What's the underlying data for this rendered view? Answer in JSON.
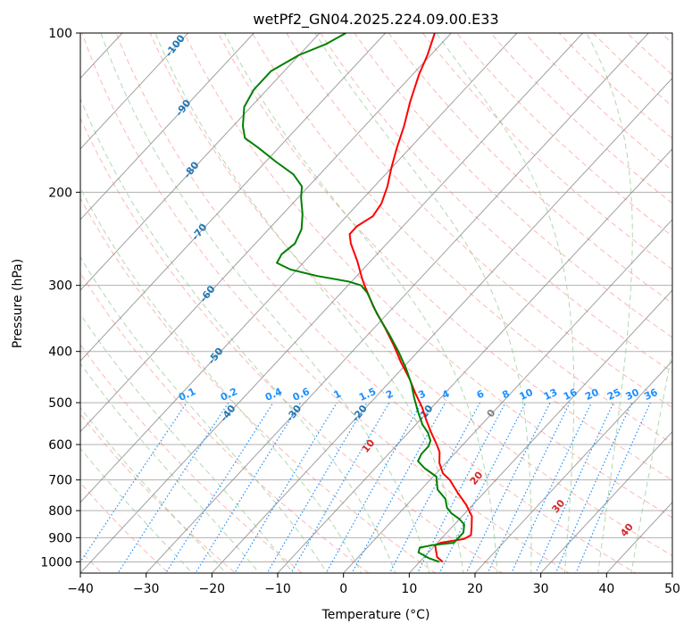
{
  "chart_data": {
    "type": "line",
    "title": "wetPf2_GN04.2025.224.09.00.E33",
    "xlabel": "Temperature (°C)",
    "ylabel": "Pressure (hPa)",
    "xlim": [
      -40,
      50
    ],
    "ylim": [
      1050,
      100
    ],
    "y_scale": "log",
    "skew": true,
    "grid": true,
    "x_ticks": [
      -40,
      -30,
      -20,
      -10,
      0,
      10,
      20,
      30,
      40,
      50
    ],
    "x_tick_labels": [
      "−40",
      "−30",
      "−20",
      "−10",
      "0",
      "10",
      "20",
      "30",
      "40",
      "50"
    ],
    "y_ticks": [
      100,
      200,
      300,
      400,
      500,
      600,
      700,
      800,
      900,
      1000
    ],
    "y_tick_labels": [
      "100",
      "200",
      "300",
      "400",
      "500",
      "600",
      "700",
      "800",
      "900",
      "1000"
    ],
    "isotherm_labels": [
      "-100",
      "-90",
      "-80",
      "-70",
      "-60",
      "-50",
      "-40",
      "-30",
      "-20",
      "-10",
      "0"
    ],
    "mixing_ratio_labels": [
      "0.1",
      "0.2",
      "0.4",
      "0.6",
      "1",
      "1.5",
      "2",
      "3",
      "4",
      "6",
      "8",
      "10",
      "13",
      "16",
      "20",
      "25",
      "30",
      "36"
    ],
    "moist_adiabat_labels": [
      "10",
      "20",
      "30",
      "40"
    ],
    "colors": {
      "temperature": "#ff0000",
      "dewpoint": "#008000",
      "isotherm": "#808080",
      "dry_adiabat": "#fa8072",
      "moist_adiabat": "#90c990",
      "mixing_ratio": "#1e90ff",
      "isotherm_label": "#1f77b4",
      "mixing_ratio_label": "#1e90ff",
      "moist_label": "#d62728",
      "isobar": "#b0b0b0",
      "lcl_curve": "#d2b48c"
    },
    "series": [
      {
        "kind": "temperature",
        "points": [
          {
            "p": 1000,
            "t": 13.5
          },
          {
            "p": 980,
            "t": 12.0
          },
          {
            "p": 955,
            "t": 11.0
          },
          {
            "p": 930,
            "t": 10.0
          },
          {
            "p": 920,
            "t": 10.5
          },
          {
            "p": 905,
            "t": 13.5
          },
          {
            "p": 890,
            "t": 14.0
          },
          {
            "p": 860,
            "t": 13.0
          },
          {
            "p": 820,
            "t": 11.5
          },
          {
            "p": 780,
            "t": 9.0
          },
          {
            "p": 740,
            "t": 6.0
          },
          {
            "p": 700,
            "t": 3.0
          },
          {
            "p": 680,
            "t": 1.0
          },
          {
            "p": 650,
            "t": -1.0
          },
          {
            "p": 620,
            "t": -2.5
          },
          {
            "p": 600,
            "t": -4.0
          },
          {
            "p": 570,
            "t": -6.5
          },
          {
            "p": 540,
            "t": -9.0
          },
          {
            "p": 510,
            "t": -11.5
          },
          {
            "p": 480,
            "t": -14.5
          },
          {
            "p": 450,
            "t": -17.5
          },
          {
            "p": 420,
            "t": -21.0
          },
          {
            "p": 390,
            "t": -24.5
          },
          {
            "p": 360,
            "t": -28.5
          },
          {
            "p": 330,
            "t": -33.0
          },
          {
            "p": 300,
            "t": -37.5
          },
          {
            "p": 290,
            "t": -39.0
          },
          {
            "p": 270,
            "t": -42.0
          },
          {
            "p": 250,
            "t": -45.5
          },
          {
            "p": 240,
            "t": -47.0
          },
          {
            "p": 232,
            "t": -47.0
          },
          {
            "p": 222,
            "t": -46.0
          },
          {
            "p": 210,
            "t": -46.5
          },
          {
            "p": 195,
            "t": -48.0
          },
          {
            "p": 180,
            "t": -50.0
          },
          {
            "p": 165,
            "t": -52.0
          },
          {
            "p": 150,
            "t": -54.0
          },
          {
            "p": 135,
            "t": -56.5
          },
          {
            "p": 120,
            "t": -59.0
          },
          {
            "p": 110,
            "t": -60.5
          },
          {
            "p": 100,
            "t": -62.5
          }
        ]
      },
      {
        "kind": "dewpoint",
        "points": [
          {
            "p": 1000,
            "t": 13.0
          },
          {
            "p": 985,
            "t": 11.0
          },
          {
            "p": 960,
            "t": 8.5
          },
          {
            "p": 940,
            "t": 8.0
          },
          {
            "p": 930,
            "t": 9.5
          },
          {
            "p": 920,
            "t": 12.5
          },
          {
            "p": 900,
            "t": 12.5
          },
          {
            "p": 880,
            "t": 12.5
          },
          {
            "p": 850,
            "t": 11.5
          },
          {
            "p": 830,
            "t": 10.0
          },
          {
            "p": 810,
            "t": 8.0
          },
          {
            "p": 790,
            "t": 6.5
          },
          {
            "p": 760,
            "t": 5.0
          },
          {
            "p": 730,
            "t": 2.5
          },
          {
            "p": 710,
            "t": 1.5
          },
          {
            "p": 690,
            "t": 0.5
          },
          {
            "p": 665,
            "t": -2.5
          },
          {
            "p": 645,
            "t": -4.5
          },
          {
            "p": 625,
            "t": -5.0
          },
          {
            "p": 605,
            "t": -5.0
          },
          {
            "p": 590,
            "t": -5.5
          },
          {
            "p": 570,
            "t": -7.0
          },
          {
            "p": 550,
            "t": -9.0
          },
          {
            "p": 520,
            "t": -11.5
          },
          {
            "p": 490,
            "t": -14.0
          },
          {
            "p": 460,
            "t": -16.5
          },
          {
            "p": 430,
            "t": -19.5
          },
          {
            "p": 400,
            "t": -23.0
          },
          {
            "p": 370,
            "t": -27.0
          },
          {
            "p": 340,
            "t": -31.5
          },
          {
            "p": 310,
            "t": -36.0
          },
          {
            "p": 300,
            "t": -38.0
          },
          {
            "p": 295,
            "t": -40.5
          },
          {
            "p": 288,
            "t": -46.0
          },
          {
            "p": 280,
            "t": -51.0
          },
          {
            "p": 272,
            "t": -54.0
          },
          {
            "p": 262,
            "t": -54.5
          },
          {
            "p": 250,
            "t": -54.0
          },
          {
            "p": 235,
            "t": -55.0
          },
          {
            "p": 220,
            "t": -57.0
          },
          {
            "p": 205,
            "t": -59.5
          },
          {
            "p": 195,
            "t": -61.0
          },
          {
            "p": 185,
            "t": -64.0
          },
          {
            "p": 175,
            "t": -68.5
          },
          {
            "p": 165,
            "t": -73.0
          },
          {
            "p": 158,
            "t": -76.5
          },
          {
            "p": 150,
            "t": -78.5
          },
          {
            "p": 138,
            "t": -81.0
          },
          {
            "p": 128,
            "t": -82.0
          },
          {
            "p": 118,
            "t": -82.0
          },
          {
            "p": 110,
            "t": -80.0
          },
          {
            "p": 105,
            "t": -77.5
          },
          {
            "p": 100,
            "t": -76.0
          }
        ]
      }
    ]
  }
}
